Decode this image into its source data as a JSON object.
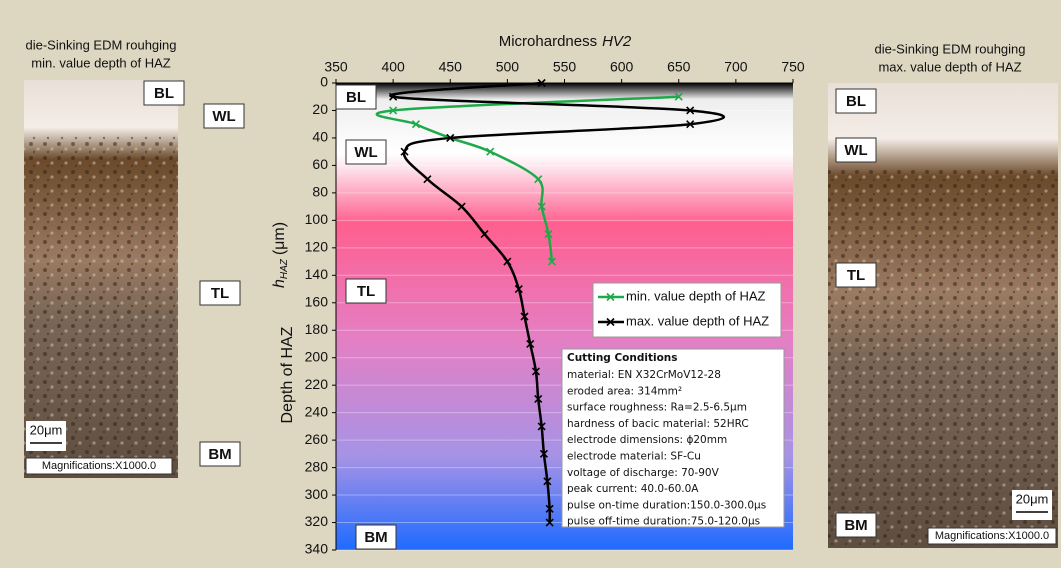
{
  "chart_data": {
    "type": "line",
    "title": "Microhardness",
    "title_italic": "HV2",
    "ylabel": "Depth of HAZ",
    "ylabel2": {
      "main": "h",
      "sub": "HAZ",
      "unit": "(μm)"
    },
    "xlim": [
      350,
      750
    ],
    "xticks": [
      350,
      400,
      450,
      500,
      550,
      600,
      650,
      700,
      750
    ],
    "ylim": [
      0,
      340
    ],
    "yticks": [
      0,
      20,
      40,
      60,
      80,
      100,
      120,
      140,
      160,
      180,
      200,
      220,
      240,
      260,
      280,
      300,
      320,
      340
    ],
    "grid": true,
    "legend": "right",
    "series": [
      {
        "name": "min. value depth of HAZ",
        "color": "#1faa4a",
        "x": [
          650,
          400,
          420,
          450,
          485,
          527,
          530,
          536,
          539
        ],
        "y": [
          10,
          20,
          30,
          40,
          50,
          70,
          90,
          110,
          130
        ]
      },
      {
        "name": "max. value depth of HAZ",
        "color": "#000000",
        "x": [
          530,
          400,
          660,
          660,
          450,
          410,
          430,
          460,
          480,
          500,
          510,
          515,
          520,
          525,
          527,
          530,
          532,
          535,
          537,
          537
        ],
        "y": [
          0,
          10,
          20,
          30,
          40,
          50,
          70,
          90,
          110,
          130,
          150,
          170,
          190,
          210,
          230,
          250,
          270,
          290,
          310,
          320
        ]
      }
    ],
    "zone_labels": [
      "BL",
      "WL",
      "TL",
      "BM"
    ],
    "conditions": {
      "title": "Cutting Conditions",
      "lines": [
        "material: EN X32CrMoV12-28",
        "eroded area: 314mm²",
        "surface roughness:  Ra=2.5-6.5μm",
        "hardness of bacic material: 52HRC",
        "electrode dimensions: ϕ20mm",
        "electrode material: SF-Cu",
        "voltage of discharge:  70-90V",
        "peak current: 40.0-60.0A",
        "pulse on-time duration:150.0-300.0μs",
        "pulse off-time duration:75.0-120.0μs"
      ]
    }
  },
  "left_image": {
    "title": [
      "die-Sinking EDM rouhging",
      "min. value depth of HAZ"
    ],
    "labels": [
      "BL",
      "WL",
      "TL",
      "BM"
    ],
    "scale": "20μm",
    "magnification": "Magnifications:X1000.0"
  },
  "right_image": {
    "title": [
      "die-Sinking EDM rouhging",
      "max. value depth of HAZ"
    ],
    "labels": [
      "BL",
      "WL",
      "TL",
      "BM"
    ],
    "scale": "20μm",
    "magnification": "Magnifications:X1000.0"
  }
}
